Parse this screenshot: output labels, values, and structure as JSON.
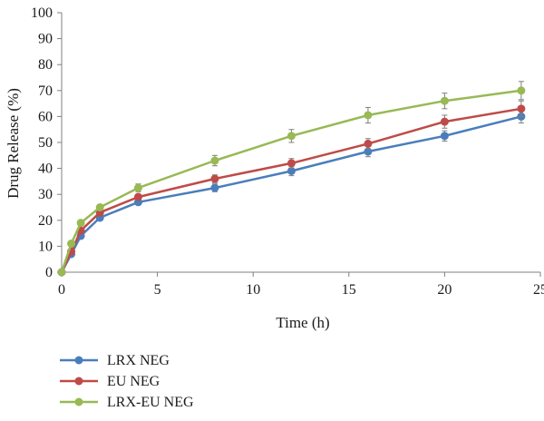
{
  "chart_data": {
    "type": "line",
    "title": "",
    "xlabel": "Time (h)",
    "ylabel": "Drug Release (%)",
    "xlim": [
      0,
      25
    ],
    "ylim": [
      0,
      100
    ],
    "x_ticks": [
      0,
      5,
      10,
      15,
      20,
      25
    ],
    "y_ticks": [
      0,
      10,
      20,
      30,
      40,
      50,
      60,
      70,
      80,
      90,
      100
    ],
    "grid": false,
    "legend_position": "bottom-left",
    "error_bars": true,
    "series": [
      {
        "name": "LRX NEG",
        "color": "#4a7ebb",
        "x": [
          0,
          0.5,
          1,
          2,
          4,
          8,
          12,
          16,
          20,
          24
        ],
        "y": [
          0,
          7,
          14,
          21,
          27,
          32.5,
          39,
          46.5,
          52.5,
          60
        ],
        "err": [
          0,
          0.8,
          1,
          1,
          1,
          1.5,
          1.8,
          2,
          2,
          2.5
        ]
      },
      {
        "name": "EU NEG",
        "color": "#be4b48",
        "x": [
          0,
          0.5,
          1,
          2,
          4,
          8,
          12,
          16,
          20,
          24
        ],
        "y": [
          0,
          8,
          16,
          23,
          29,
          36,
          42,
          49.5,
          58,
          63
        ],
        "err": [
          0,
          0.8,
          1,
          1,
          1,
          1.5,
          1.8,
          2,
          2.5,
          3
        ]
      },
      {
        "name": "LRX-EU NEG",
        "color": "#98b954",
        "x": [
          0,
          0.5,
          1,
          2,
          4,
          8,
          12,
          16,
          20,
          24
        ],
        "y": [
          0,
          11,
          19,
          25,
          32.5,
          43,
          52.5,
          60.5,
          66,
          70
        ],
        "err": [
          0,
          0.8,
          1,
          1,
          1.5,
          2,
          2.5,
          3,
          3,
          3.5
        ]
      }
    ]
  }
}
